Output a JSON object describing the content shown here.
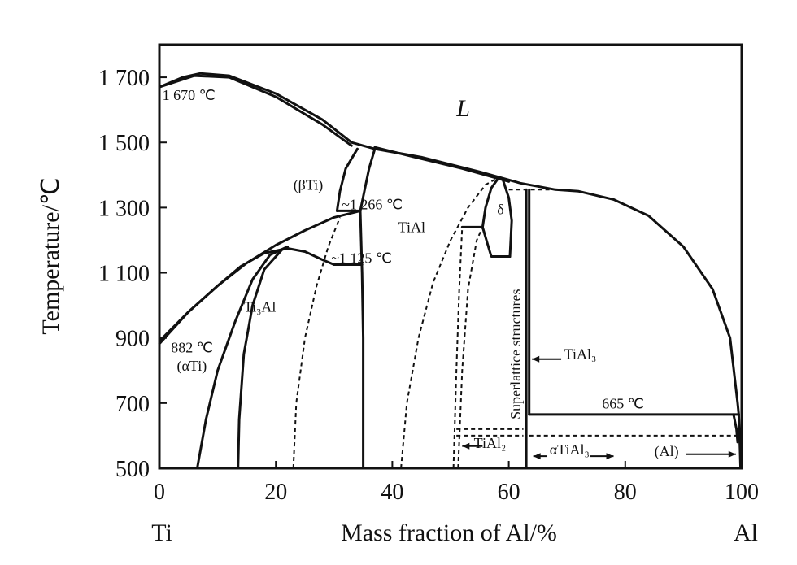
{
  "chart_data": {
    "type": "line",
    "title": "",
    "xlabel": "Mass fraction of Al/%",
    "ylabel": "Temperature/℃",
    "xlim": [
      0,
      100
    ],
    "ylim": [
      500,
      1800
    ],
    "x_ticks": [
      "0",
      "20",
      "40",
      "60",
      "80",
      "100"
    ],
    "y_ticks": [
      "500",
      "700",
      "900",
      "1 100",
      "1 300",
      "1 500",
      "1 700"
    ],
    "x_tick_values": [
      0,
      20,
      40,
      60,
      80,
      100
    ],
    "y_tick_values": [
      500,
      700,
      900,
      1100,
      1300,
      1500,
      1700
    ],
    "left_end_label": "Ti",
    "right_end_label": "Al",
    "phase_boundaries": [
      {
        "id": "liquidus-left",
        "style": "solid",
        "points": [
          [
            0,
            1670
          ],
          [
            4,
            1700
          ],
          [
            7,
            1712
          ],
          [
            12,
            1705
          ],
          [
            20,
            1650
          ],
          [
            28,
            1570
          ],
          [
            33,
            1500
          ],
          [
            37,
            1480
          ]
        ]
      },
      {
        "id": "solidus-left",
        "style": "solid",
        "points": [
          [
            0,
            1670
          ],
          [
            6,
            1705
          ],
          [
            12,
            1700
          ],
          [
            20,
            1640
          ],
          [
            28,
            1555
          ],
          [
            33,
            1490
          ]
        ]
      },
      {
        "id": "liquidus-right",
        "style": "solid",
        "points": [
          [
            37,
            1480
          ],
          [
            45,
            1455
          ],
          [
            55,
            1410
          ],
          [
            62,
            1375
          ],
          [
            68,
            1355
          ],
          [
            72,
            1350
          ],
          [
            78,
            1325
          ],
          [
            84,
            1275
          ],
          [
            90,
            1180
          ],
          [
            95,
            1050
          ],
          [
            98,
            900
          ],
          [
            99.3,
            700
          ],
          [
            99.5,
            665
          ]
        ]
      },
      {
        "id": "solidus-right",
        "style": "solid",
        "points": [
          [
            37,
            1485
          ],
          [
            45,
            1450
          ],
          [
            52,
            1420
          ],
          [
            58,
            1390
          ],
          [
            60,
            1380
          ]
        ]
      },
      {
        "id": "beta-tial-left",
        "style": "solid",
        "points": [
          [
            34,
            1480
          ],
          [
            32,
            1420
          ],
          [
            31,
            1350
          ],
          [
            30.5,
            1290
          ]
        ]
      },
      {
        "id": "beta-tial-right",
        "style": "solid",
        "points": [
          [
            37,
            1480
          ],
          [
            36,
            1420
          ],
          [
            35.2,
            1350
          ],
          [
            34.5,
            1290
          ]
        ]
      },
      {
        "id": "alpha2-tial-line",
        "style": "solid",
        "points": [
          [
            34.5,
            1290
          ],
          [
            34.8,
            1100
          ],
          [
            35,
            900
          ],
          [
            35,
            700
          ],
          [
            35,
            500
          ]
        ]
      },
      {
        "id": "beta-transus",
        "style": "solid",
        "points": [
          [
            0,
            890
          ],
          [
            5,
            980
          ],
          [
            10,
            1060
          ],
          [
            15,
            1130
          ],
          [
            20,
            1185
          ],
          [
            25,
            1230
          ],
          [
            30,
            1270
          ],
          [
            34.5,
            1290
          ]
        ]
      },
      {
        "id": "alpha-transus",
        "style": "solid",
        "points": [
          [
            0,
            882
          ],
          [
            5,
            980
          ],
          [
            10,
            1060
          ],
          [
            14,
            1120
          ],
          [
            18,
            1160
          ],
          [
            22,
            1175
          ],
          [
            25,
            1165
          ],
          [
            28,
            1140
          ],
          [
            30,
            1125
          ]
        ]
      },
      {
        "id": "ti3al-left",
        "style": "solid",
        "points": [
          [
            6.5,
            500
          ],
          [
            8,
            650
          ],
          [
            10,
            800
          ],
          [
            13,
            950
          ],
          [
            16,
            1080
          ],
          [
            19,
            1155
          ],
          [
            22,
            1180
          ]
        ]
      },
      {
        "id": "ti3al-right",
        "style": "solid",
        "points": [
          [
            13.5,
            500
          ],
          [
            13.7,
            650
          ],
          [
            14.5,
            850
          ],
          [
            16,
            1000
          ],
          [
            18,
            1110
          ],
          [
            21,
            1170
          ]
        ]
      },
      {
        "id": "eutectoid-1125",
        "style": "solid",
        "points": [
          [
            30,
            1125
          ],
          [
            34.8,
            1125
          ]
        ]
      },
      {
        "id": "peritectic-1266",
        "style": "solid",
        "points": [
          [
            30.5,
            1290
          ],
          [
            34.5,
            1290
          ]
        ]
      },
      {
        "id": "ti3al-tial-dashed",
        "style": "dashed",
        "points": [
          [
            23,
            500
          ],
          [
            23.5,
            700
          ],
          [
            25,
            900
          ],
          [
            27,
            1060
          ],
          [
            29,
            1180
          ],
          [
            31,
            1270
          ]
        ]
      },
      {
        "id": "tial-right-dashed",
        "style": "dashed",
        "points": [
          [
            41.5,
            500
          ],
          [
            42.5,
            700
          ],
          [
            44.5,
            900
          ],
          [
            47,
            1070
          ],
          [
            50,
            1200
          ],
          [
            53,
            1300
          ],
          [
            56,
            1370
          ],
          [
            58,
            1390
          ]
        ]
      },
      {
        "id": "tial2-left-dashed",
        "style": "dashed",
        "points": [
          [
            50.5,
            500
          ],
          [
            51,
            800
          ],
          [
            51.5,
            1050
          ],
          [
            52,
            1240
          ]
        ]
      },
      {
        "id": "tial2-right-dashed",
        "style": "dashed",
        "points": [
          [
            51.3,
            500
          ],
          [
            52,
            800
          ],
          [
            53,
            1050
          ],
          [
            54.5,
            1200
          ],
          [
            55.5,
            1240
          ]
        ]
      },
      {
        "id": "delta-left",
        "style": "solid",
        "points": [
          [
            55.5,
            1240
          ],
          [
            56,
            1300
          ],
          [
            57,
            1360
          ],
          [
            58,
            1385
          ]
        ]
      },
      {
        "id": "delta-right",
        "style": "solid",
        "points": [
          [
            59,
            1385
          ],
          [
            60,
            1330
          ],
          [
            60.5,
            1260
          ],
          [
            60.2,
            1150
          ]
        ]
      },
      {
        "id": "delta-inner",
        "style": "solid",
        "points": [
          [
            55.5,
            1240
          ],
          [
            56.5,
            1180
          ],
          [
            57,
            1150
          ],
          [
            60.2,
            1150
          ]
        ]
      },
      {
        "id": "delta-1240",
        "style": "solid",
        "points": [
          [
            52,
            1240
          ],
          [
            55.5,
            1240
          ]
        ]
      },
      {
        "id": "tial3-left",
        "style": "solid",
        "points": [
          [
            63,
            500
          ],
          [
            63,
            1355
          ]
        ]
      },
      {
        "id": "tial3-right",
        "style": "solid",
        "points": [
          [
            63.5,
            665
          ],
          [
            63.5,
            1355
          ]
        ]
      },
      {
        "id": "tial3-top-dashed",
        "style": "dashed",
        "points": [
          [
            60,
            1355
          ],
          [
            67,
            1355
          ]
        ]
      },
      {
        "id": "peritectic-665",
        "style": "solid",
        "points": [
          [
            63.5,
            665
          ],
          [
            99.5,
            665
          ]
        ]
      },
      {
        "id": "tial2-top-dashed",
        "style": "dashed",
        "points": [
          [
            51,
            620
          ],
          [
            62.5,
            620
          ]
        ]
      },
      {
        "id": "tial2-sub-dashed",
        "style": "dashed",
        "points": [
          [
            51,
            600
          ],
          [
            62.5,
            600
          ]
        ]
      },
      {
        "id": "al-solvus-dashed",
        "style": "dashed",
        "points": [
          [
            63.5,
            600
          ],
          [
            99.5,
            600
          ]
        ]
      },
      {
        "id": "al-terminal",
        "style": "solid",
        "points": [
          [
            99.5,
            665
          ],
          [
            99.7,
            560
          ],
          [
            99.8,
            500
          ]
        ]
      },
      {
        "id": "al-terminal-2",
        "style": "solid",
        "points": [
          [
            98.6,
            665
          ],
          [
            99.1,
            620
          ],
          [
            99.3,
            580
          ]
        ]
      }
    ],
    "annotations": [
      {
        "id": "liquid",
        "text": "L",
        "x": 51,
        "y": 1580
      },
      {
        "id": "t1670",
        "text": "1 670 ℃",
        "x": 0.5,
        "y": 1630
      },
      {
        "id": "beta-ti",
        "text": "(βTi)",
        "x": 23,
        "y": 1355
      },
      {
        "id": "t1266",
        "text": "~1 266 ℃",
        "x": 31.3,
        "y": 1295
      },
      {
        "id": "tial",
        "text": "TiAl",
        "x": 41,
        "y": 1225
      },
      {
        "id": "t1125",
        "text": "~1 125 ℃",
        "x": 29.5,
        "y": 1130
      },
      {
        "id": "ti3al",
        "text": "Ti₃Al",
        "x": 14.5,
        "y": 980
      },
      {
        "id": "t882",
        "text": "882 ℃",
        "x": 2,
        "y": 855
      },
      {
        "id": "alpha-ti",
        "text": "(αTi)",
        "x": 3,
        "y": 800
      },
      {
        "id": "delta",
        "text": "δ",
        "x": 58,
        "y": 1280
      },
      {
        "id": "superlattice",
        "text": "Superlattice structures",
        "x": 62,
        "y": 850
      },
      {
        "id": "tial3",
        "text": "TiAl₃",
        "x": 69.5,
        "y": 835
      },
      {
        "id": "t665",
        "text": "665 ℃",
        "x": 76,
        "y": 683
      },
      {
        "id": "tial2",
        "text": "TiAl₂",
        "x": 54,
        "y": 563
      },
      {
        "id": "alpha-tial3",
        "text": "αTiAl₃",
        "x": 67,
        "y": 543
      },
      {
        "id": "al-phase",
        "text": "(Al)",
        "x": 85,
        "y": 537
      }
    ],
    "arrows": [
      {
        "id": "arrow-tial3",
        "from": [
          69,
          835
        ],
        "to": [
          64,
          835
        ]
      },
      {
        "id": "arrow-tial2",
        "from": [
          55.5,
          568
        ],
        "to": [
          52,
          568
        ]
      },
      {
        "id": "arrow-alpha-tial3-left",
        "from": [
          66.5,
          537
        ],
        "to": [
          64.2,
          537
        ]
      },
      {
        "id": "arrow-alpha-tial3-right",
        "from": [
          74,
          537
        ],
        "to": [
          78,
          537
        ]
      },
      {
        "id": "arrow-al",
        "from": [
          90.5,
          543
        ],
        "to": [
          99,
          543
        ]
      }
    ],
    "grid": false,
    "legend": "none"
  }
}
